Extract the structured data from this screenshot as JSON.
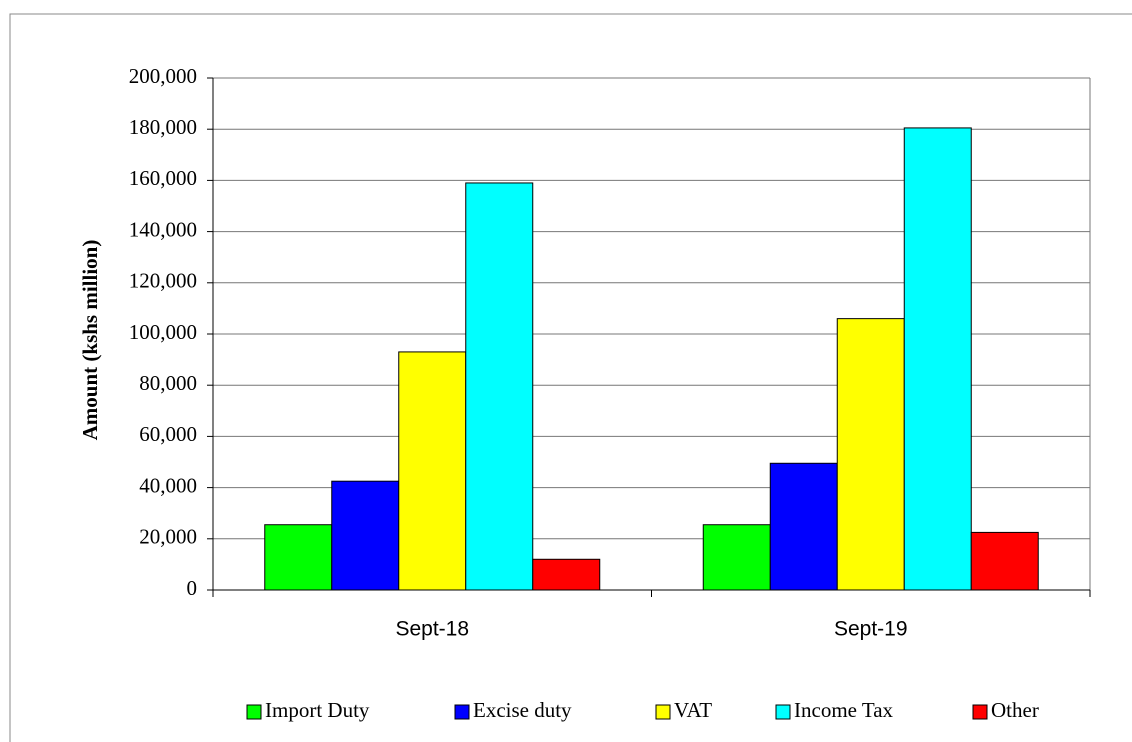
{
  "chart_data": {
    "type": "bar",
    "y_label": "Amount (kshs million)",
    "categories": [
      "Sept-18",
      "Sept-19"
    ],
    "series": [
      {
        "name": "Import Duty",
        "color": "#00ff00",
        "values": [
          25500,
          25500
        ]
      },
      {
        "name": "Excise duty",
        "color": "#0000ff",
        "values": [
          42500,
          49500
        ]
      },
      {
        "name": "VAT",
        "color": "#ffff00",
        "values": [
          93000,
          106000
        ]
      },
      {
        "name": "Income Tax",
        "color": "#00ffff",
        "values": [
          159000,
          180500
        ]
      },
      {
        "name": "Other",
        "color": "#ff0000",
        "values": [
          12000,
          22500
        ]
      }
    ],
    "ylim": [
      0,
      200000
    ],
    "yticks": [
      0,
      {
        "value": 20000,
        "label": "20,000"
      },
      {
        "value": 40000,
        "label": "40,000"
      },
      {
        "value": 60000,
        "label": "60,000"
      },
      {
        "value": 80000,
        "label": "80,000"
      },
      {
        "value": 100000,
        "label": "100,000"
      },
      {
        "value": 120000,
        "label": "120,000"
      },
      {
        "value": 140000,
        "label": "140,000"
      },
      {
        "value": 160000,
        "label": "160,000"
      },
      {
        "value": 180000,
        "label": "180,000"
      },
      {
        "value": 200000,
        "label": "200,000"
      }
    ],
    "grid": true,
    "legend": "bottom"
  }
}
